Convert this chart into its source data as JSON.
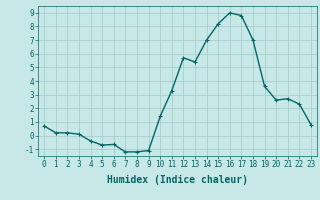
{
  "x": [
    0,
    1,
    2,
    3,
    4,
    5,
    6,
    7,
    8,
    9,
    10,
    11,
    12,
    13,
    14,
    15,
    16,
    17,
    18,
    19,
    20,
    21,
    22,
    23
  ],
  "y": [
    0.7,
    0.2,
    0.2,
    0.1,
    -0.4,
    -0.7,
    -0.65,
    -1.2,
    -1.2,
    -1.1,
    1.4,
    3.3,
    5.7,
    5.4,
    7.0,
    8.2,
    9.0,
    8.8,
    7.0,
    3.6,
    2.6,
    2.7,
    2.3,
    0.8
  ],
  "line_color": "#006666",
  "marker": "+",
  "marker_size": 3,
  "background_color": "#c8e8e8",
  "grid_color": "#a0c8c8",
  "xlabel": "Humidex (Indice chaleur)",
  "xlim": [
    -0.5,
    23.5
  ],
  "ylim": [
    -1.5,
    9.5
  ],
  "yticks": [
    -1,
    0,
    1,
    2,
    3,
    4,
    5,
    6,
    7,
    8,
    9
  ],
  "xticks": [
    0,
    1,
    2,
    3,
    4,
    5,
    6,
    7,
    8,
    9,
    10,
    11,
    12,
    13,
    14,
    15,
    16,
    17,
    18,
    19,
    20,
    21,
    22,
    23
  ],
  "tick_color": "#006666",
  "label_color": "#006666",
  "xlabel_fontsize": 7,
  "tick_fontsize": 5.5,
  "line_width": 1.0
}
